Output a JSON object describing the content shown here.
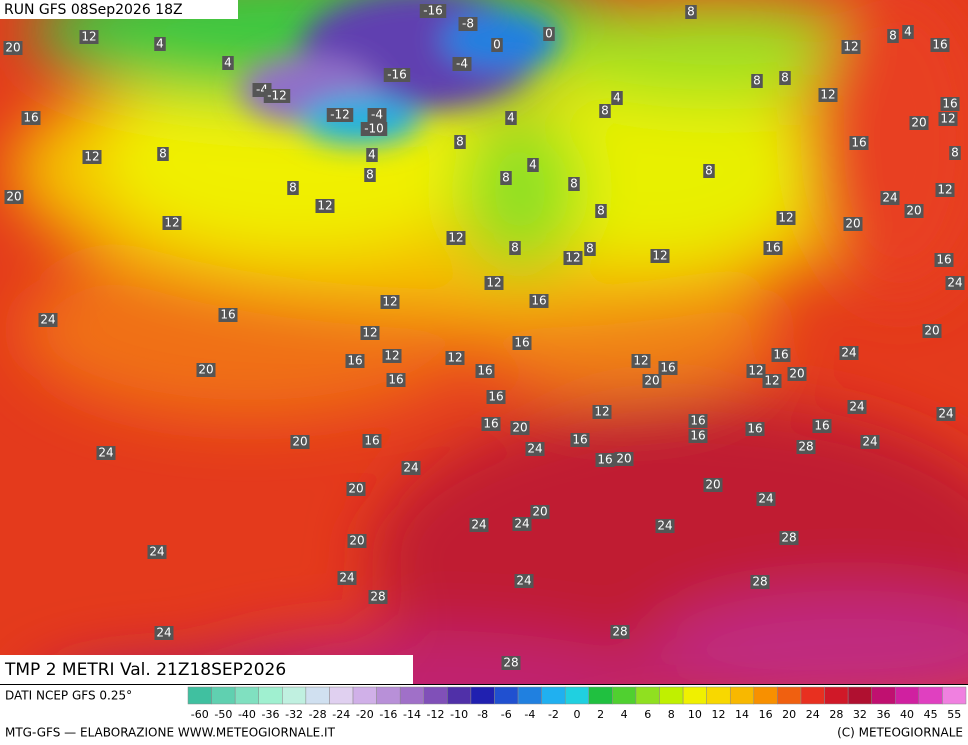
{
  "header": {
    "run": "RUN GFS 08Sep2026 18Z",
    "field": "TMP 2 METRI Val. 21Z18SEP2026"
  },
  "footer": {
    "source": "DATI NCEP GFS 0.25°",
    "credits": "MTG-GFS — ELABORAZIONE WWW.METEOGIORNALE.IT",
    "copyright": "(C) METEOGIORNALE"
  },
  "map": {
    "labels": [
      "12",
      "4",
      "20",
      "-16",
      "-8",
      "8",
      "0",
      "0",
      "12",
      "8",
      "4",
      "16",
      "4",
      "-4",
      "-16",
      "-4",
      "-12",
      "8",
      "8",
      "12",
      "16",
      "16",
      "-12",
      "-4",
      "-10",
      "4",
      "8",
      "4",
      "20",
      "12",
      "8",
      "12",
      "8",
      "4",
      "16",
      "8",
      "8",
      "8",
      "8",
      "8",
      "4",
      "20",
      "8",
      "12",
      "24",
      "12",
      "20",
      "12",
      "8",
      "12",
      "20",
      "12",
      "8",
      "12",
      "8",
      "12",
      "16",
      "16",
      "12",
      "24",
      "16",
      "12",
      "24",
      "16",
      "12",
      "20",
      "16",
      "24",
      "12",
      "16",
      "12",
      "12",
      "16",
      "16",
      "20",
      "16",
      "20",
      "12",
      "12",
      "20",
      "16",
      "16",
      "12",
      "24",
      "24",
      "16",
      "16",
      "20",
      "16",
      "16",
      "16",
      "20",
      "16",
      "16",
      "28",
      "24",
      "24",
      "24",
      "16",
      "20",
      "24",
      "20",
      "20",
      "24",
      "20",
      "24",
      "24",
      "24",
      "20",
      "28",
      "24",
      "24",
      "24",
      "28",
      "28",
      "24",
      "28",
      "28"
    ]
  },
  "colorbar": {
    "ticks": [
      "-60",
      "-50",
      "-40",
      "-36",
      "-32",
      "-28",
      "-24",
      "-20",
      "-16",
      "-14",
      "-12",
      "-10",
      "-8",
      "-6",
      "-4",
      "-2",
      "0",
      "2",
      "4",
      "6",
      "8",
      "10",
      "12",
      "14",
      "16",
      "20",
      "24",
      "28",
      "32",
      "36",
      "40",
      "45",
      "55"
    ],
    "colors": [
      "#40c0a0",
      "#60d0b0",
      "#80e0c0",
      "#a0f0d0",
      "#c0f0e0",
      "#d0e0f0",
      "#e0d0f0",
      "#d0b0e8",
      "#b890d8",
      "#a070c8",
      "#8050b8",
      "#5030a8",
      "#2020b0",
      "#2050d0",
      "#2080e0",
      "#20b0f0",
      "#20d0e0",
      "#20c040",
      "#50d030",
      "#90e020",
      "#c0f000",
      "#f0f000",
      "#f8d800",
      "#f8b800",
      "#f89000",
      "#f06010",
      "#e83020",
      "#d01828",
      "#b01030",
      "#c01070",
      "#d020a0",
      "#e040c0",
      "#f080e0"
    ]
  }
}
